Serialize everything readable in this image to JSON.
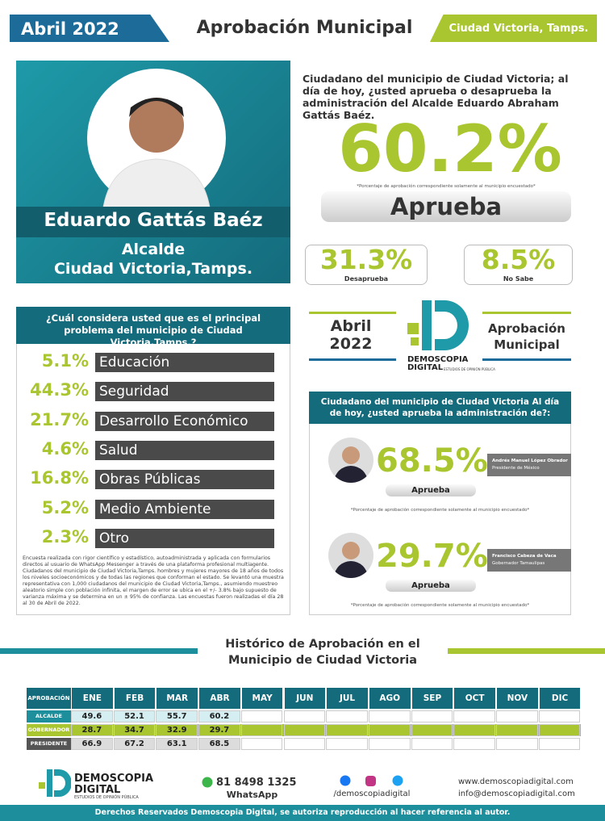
{
  "header": {
    "date": "Abril 2022",
    "title": "Aprobación Municipal",
    "location": "Ciudad Victoria, Tamps."
  },
  "profile": {
    "name": "Eduardo Gattás Baéz",
    "role": "Alcalde",
    "place": "Ciudad Victoria,Tamps."
  },
  "main_question": {
    "question": "Ciudadano del municipio de Ciudad Victoria; al día de hoy, ¿usted aprueba o desaprueba la administración del Alcalde Eduardo Abraham Gattás Baéz.",
    "approve_value": "60.2%",
    "note": "*Porcentaje de aprobación correspondiente solamente al municipio encuestado*",
    "approve_label": "Aprueba",
    "disapprove_value": "31.3%",
    "disapprove_label": "Desaprueba",
    "unknown_value": "8.5%",
    "unknown_label": "No Sabe"
  },
  "problems": {
    "question": "¿Cuál considera usted que es el principal problema del municipio de Ciudad Victoria,Tamps.?",
    "items": [
      {
        "value": "5.1%",
        "label": "Educación"
      },
      {
        "value": "44.3%",
        "label": "Seguridad"
      },
      {
        "value": "21.7%",
        "label": "Desarrollo Económico"
      },
      {
        "value": "4.6%",
        "label": "Salud"
      },
      {
        "value": "16.8%",
        "label": "Obras Públicas"
      },
      {
        "value": "5.2%",
        "label": "Medio Ambiente"
      },
      {
        "value": "2.3%",
        "label": "Otro"
      }
    ],
    "methodology": "Encuesta realizada con rigor científico y estadístico, autoadministrada y aplicada con formularios directos al usuario de WhatsApp Messenger a través de una plataforma profesional multiagente. Ciudadanos del municipio de Ciudad Victoria,Tamps. hombres y mujeres mayores de 18 años de todos los niveles socioeconómicos y de todas las regiones que conforman el estado. Se levantó una muestra representativa con 1,000 ciudadanos del municipio de Ciudad Victoria,Tamps., asumiendo muestreo aleatorio simple con población infinita, el margen de error se ubica en el +/- 3.8% bajo supuesto de varianza máxima y se determina en un ± 95% de confianza. Las encuestas fueron realizadas el día 28 al 30 de Abril de 2022."
  },
  "badge": {
    "date": "Abril 2022",
    "brand": "DEMOSCOPIA",
    "brand2": "DIGITAL",
    "brand_sub": "ESTUDIOS DE OPINIÓN PÚBLICA",
    "title": "Aprobación Municipal"
  },
  "others": {
    "question": "Ciudadano del municipio de Ciudad Victoria Al día de hoy, ¿usted aprueba la administración de?:",
    "people": [
      {
        "value": "68.5%",
        "label": "Aprueba",
        "name": "Andrés Manuel López Obrador",
        "role": "Presidente de México",
        "note": "*Porcentaje de aprobación correspondiente solamente al municipio encuestado*"
      },
      {
        "value": "29.7%",
        "label": "Aprueba",
        "name": "Francisco Cabeza de Vaca",
        "role": "Gobernador Tamaulipas",
        "note": "*Porcentaje de aprobación correspondiente solamente al municipio encuestado*"
      }
    ]
  },
  "history": {
    "title": "Histórico de Aprobación en el Municipio de Ciudad Victoria",
    "corner": "APROBACIÓN",
    "months": [
      "ENE 2022",
      "FEB 2022",
      "MAR 2022",
      "ABR 2022",
      "MAY 2022",
      "JUN 2022",
      "JUL 2022",
      "AGO 2022",
      "SEP 2022",
      "OCT 2022",
      "NOV 2022",
      "DIC 2022"
    ],
    "rows": [
      {
        "label": "ALCALDE",
        "values": [
          49.6,
          52.1,
          55.7,
          60.2
        ]
      },
      {
        "label": "GOBERNADOR",
        "values": [
          28.7,
          34.7,
          32.9,
          29.7
        ]
      },
      {
        "label": "PRESIDENTE",
        "values": [
          66.9,
          67.2,
          63.1,
          68.5
        ]
      }
    ]
  },
  "footer": {
    "brand": "DEMOSCOPIA",
    "brand2": "DIGITAL",
    "brand_sub": "ESTUDIOS DE OPINIÓN PÚBLICA",
    "phone": "81 8498 1325",
    "whatsapp": "WhatsApp",
    "social": "/demoscopiadigital",
    "website": "www.demoscopiadigital.com",
    "email": "info@demoscopiadigital.com",
    "rights": "Derechos Reservados Demoscopia Digital, se autoriza reproducción al hacer referencia al autor."
  }
}
